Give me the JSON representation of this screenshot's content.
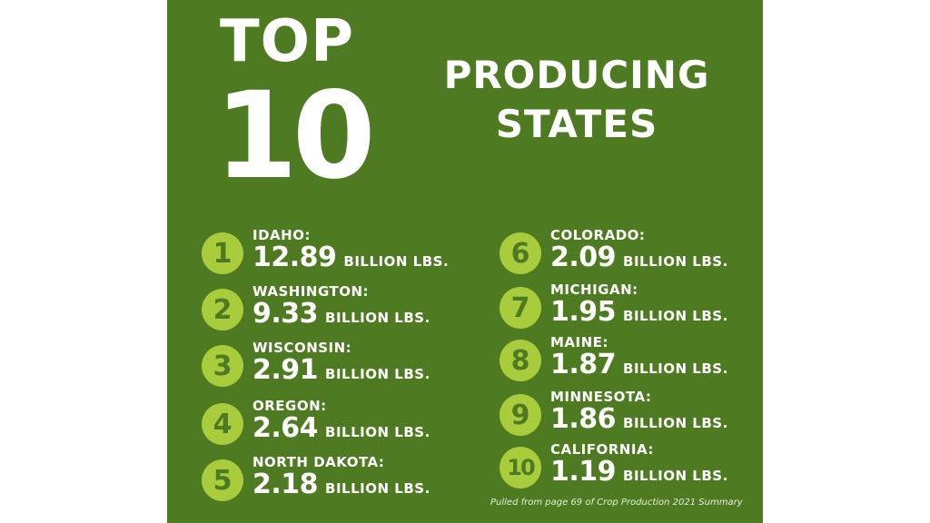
{
  "title": {
    "top": "TOP",
    "number": "10",
    "line1": "PRODUCING",
    "line2": "STATES"
  },
  "unit": "BILLION LBS.",
  "states": [
    {
      "rank": "1",
      "name": "IDAHO:",
      "value": "12.89"
    },
    {
      "rank": "2",
      "name": "WASHINGTON:",
      "value": "9.33"
    },
    {
      "rank": "3",
      "name": "WISCONSIN:",
      "value": "2.91"
    },
    {
      "rank": "4",
      "name": "OREGON:",
      "value": "2.64"
    },
    {
      "rank": "5",
      "name": "NORTH DAKOTA:",
      "value": "2.18"
    },
    {
      "rank": "6",
      "name": "COLORADO:",
      "value": "2.09"
    },
    {
      "rank": "7",
      "name": "MICHIGAN:",
      "value": "1.95"
    },
    {
      "rank": "8",
      "name": "MAINE:",
      "value": "1.87"
    },
    {
      "rank": "9",
      "name": "MINNESOTA:",
      "value": "1.86"
    },
    {
      "rank": "10",
      "name": "CALIFORNIA:",
      "value": "1.19"
    }
  ],
  "footnote": "Pulled from page 69 of Crop Production 2021 Summary",
  "colors": {
    "background": "#4e7a22",
    "badge": "#a9cc3c",
    "text": "#ffffff"
  }
}
